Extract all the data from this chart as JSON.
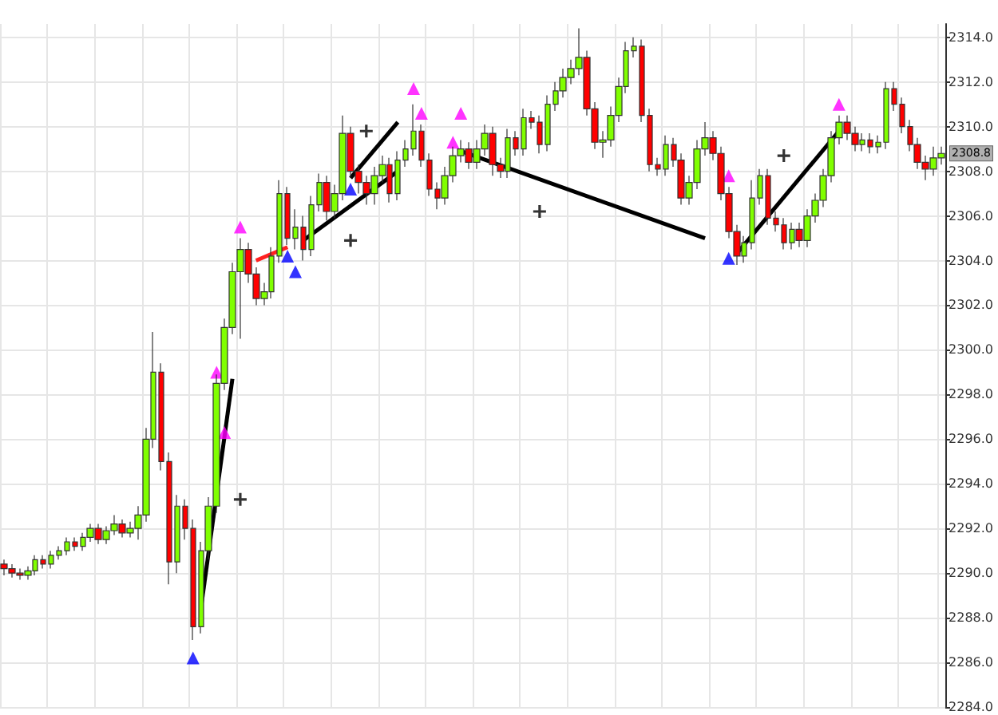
{
  "chart_data": {
    "type": "candlestick",
    "categories": [
      null,
      null,
      null,
      null,
      null,
      null,
      null,
      null,
      null,
      null,
      null,
      null,
      null,
      null,
      null,
      null,
      null,
      null,
      null,
      null,
      null,
      null,
      null,
      null,
      null,
      null,
      null,
      null,
      null,
      null,
      null,
      null,
      null,
      null,
      null,
      null,
      null,
      null,
      null,
      null,
      null,
      null,
      null,
      null,
      null,
      null,
      null,
      null,
      null,
      null,
      null,
      null,
      null,
      null,
      null,
      null,
      null,
      null,
      null,
      null,
      null,
      null,
      null,
      null,
      null,
      null,
      null,
      null,
      null,
      null,
      null,
      null,
      null,
      null,
      null,
      null,
      null,
      null,
      null,
      null,
      null,
      null,
      null,
      null,
      null,
      null,
      null,
      null,
      null,
      null,
      null,
      null,
      null,
      null,
      null,
      null,
      null,
      null,
      null,
      null,
      null,
      null,
      null,
      null,
      null,
      null,
      null,
      null,
      null,
      null,
      null,
      null,
      null,
      null,
      null,
      null,
      null,
      null,
      null,
      null
    ],
    "colors": [
      "#ff0000",
      "#ff0000",
      "#ff0000",
      "#80ff00",
      "#80ff00",
      "#ff0000",
      "#80ff00",
      "#80ff00",
      "#80ff00",
      "#ff0000",
      "#80ff00",
      "#80ff00",
      "#ff0000",
      "#80ff00",
      "#80ff00",
      "#ff0000",
      "#80ff00",
      "#80ff00",
      "#80ff00",
      "#80ff00",
      "#ff0000",
      "#ff0000",
      "#80ff00",
      "#ff0000",
      "#ff0000",
      "#80ff00",
      "#80ff00",
      "#80ff00",
      "#80ff00",
      "#80ff00",
      "#80ff00",
      "#ff0000",
      "#ff0000",
      "#80ff00",
      "#80ff00",
      "#80ff00",
      "#ff0000",
      "#80ff00",
      "#ff0000",
      "#80ff00",
      "#80ff00",
      "#ff0000",
      "#80ff00",
      "#80ff00",
      "#ff0000",
      "#ff0000",
      "#ff0000",
      "#80ff00",
      "#80ff00",
      "#ff0000",
      "#80ff00",
      "#80ff00",
      "#80ff00",
      "#ff0000",
      "#ff0000",
      "#ff0000",
      "#80ff00",
      "#80ff00",
      "#80ff00",
      "#ff0000",
      "#80ff00",
      "#80ff00",
      "#ff0000",
      "#ff0000",
      "#80ff00",
      "#ff0000",
      "#80ff00",
      "#ff0000",
      "#ff0000",
      "#80ff00",
      "#80ff00",
      "#80ff00",
      "#80ff00",
      "#80ff00",
      "#ff0000",
      "#ff0000",
      "#80ff00",
      "#80ff00",
      "#80ff00",
      "#80ff00",
      "#80ff00",
      "#ff0000",
      "#ff0000",
      "#ff0000",
      "#80ff00",
      "#ff0000",
      "#ff0000",
      "#80ff00",
      "#80ff00",
      "#80ff00",
      "#ff0000",
      "#ff0000",
      "#ff0000",
      "#ff0000",
      "#80ff00",
      "#80ff00",
      "#80ff00",
      "#ff0000",
      "#ff0000",
      "#ff0000",
      "#80ff00",
      "#ff0000",
      "#80ff00",
      "#80ff00",
      "#80ff00",
      "#80ff00",
      "#80ff00",
      "#ff0000",
      "#ff0000",
      "#80ff00",
      "#ff0000",
      "#80ff00",
      "#80ff00",
      "#ff0000",
      "#ff0000",
      "#ff0000",
      "#ff0000",
      "#ff0000",
      "#80ff00",
      "#80ff00"
    ],
    "ohlc": [
      [
        2290.4,
        2290.6,
        2289.9,
        2290.2
      ],
      [
        2290.2,
        2290.4,
        2289.8,
        2290.0
      ],
      [
        2290.0,
        2290.2,
        2289.7,
        2289.9
      ],
      [
        2289.9,
        2290.3,
        2289.7,
        2290.1
      ],
      [
        2290.1,
        2290.8,
        2289.9,
        2290.6
      ],
      [
        2290.6,
        2290.8,
        2290.2,
        2290.4
      ],
      [
        2290.4,
        2291.0,
        2290.2,
        2290.8
      ],
      [
        2290.8,
        2291.2,
        2290.6,
        2291.0
      ],
      [
        2291.0,
        2291.6,
        2290.8,
        2291.4
      ],
      [
        2291.4,
        2291.6,
        2291.0,
        2291.2
      ],
      [
        2291.2,
        2291.8,
        2291.0,
        2291.6
      ],
      [
        2291.6,
        2292.2,
        2291.4,
        2292.0
      ],
      [
        2292.0,
        2292.2,
        2291.3,
        2291.5
      ],
      [
        2291.5,
        2292.1,
        2291.3,
        2291.9
      ],
      [
        2291.9,
        2292.6,
        2291.7,
        2292.2
      ],
      [
        2292.2,
        2292.4,
        2291.6,
        2291.8
      ],
      [
        2291.8,
        2292.3,
        2291.6,
        2292.0
      ],
      [
        2292.0,
        2293.0,
        2291.5,
        2292.6
      ],
      [
        2292.6,
        2296.5,
        2292.3,
        2296.0
      ],
      [
        2296.0,
        2300.8,
        2295.6,
        2299.0
      ],
      [
        2299.0,
        2299.4,
        2294.6,
        2295.0
      ],
      [
        2295.0,
        2295.4,
        2289.5,
        2290.5
      ],
      [
        2290.5,
        2293.5,
        2290.0,
        2293.0
      ],
      [
        2293.0,
        2293.3,
        2291.5,
        2292.0
      ],
      [
        2292.0,
        2292.4,
        2287.0,
        2287.6
      ],
      [
        2287.6,
        2291.4,
        2287.3,
        2291.0
      ],
      [
        2291.0,
        2293.4,
        2290.6,
        2293.0
      ],
      [
        2293.0,
        2298.9,
        2292.7,
        2298.5
      ],
      [
        2298.5,
        2301.4,
        2298.2,
        2301.0
      ],
      [
        2301.0,
        2303.9,
        2300.7,
        2303.5
      ],
      [
        2303.5,
        2305.0,
        2300.5,
        2304.5
      ],
      [
        2304.5,
        2304.8,
        2303.0,
        2303.4
      ],
      [
        2303.4,
        2303.7,
        2302.0,
        2302.3
      ],
      [
        2302.3,
        2303.0,
        2302.0,
        2302.6
      ],
      [
        2302.6,
        2304.6,
        2302.3,
        2304.2
      ],
      [
        2304.2,
        2307.6,
        2303.9,
        2307.0
      ],
      [
        2307.0,
        2307.3,
        2304.7,
        2305.0
      ],
      [
        2305.0,
        2306.3,
        2304.5,
        2305.5
      ],
      [
        2305.5,
        2306.0,
        2304.0,
        2304.5
      ],
      [
        2304.5,
        2306.9,
        2304.2,
        2306.5
      ],
      [
        2306.5,
        2307.9,
        2306.2,
        2307.5
      ],
      [
        2307.5,
        2307.8,
        2305.8,
        2306.2
      ],
      [
        2306.2,
        2307.4,
        2305.9,
        2307.0
      ],
      [
        2307.0,
        2310.5,
        2306.7,
        2309.7
      ],
      [
        2309.7,
        2310.0,
        2307.7,
        2308.0
      ],
      [
        2308.0,
        2308.3,
        2307.0,
        2307.5
      ],
      [
        2307.5,
        2307.8,
        2306.5,
        2307.0
      ],
      [
        2307.0,
        2308.2,
        2306.5,
        2307.8
      ],
      [
        2307.8,
        2308.7,
        2307.5,
        2308.3
      ],
      [
        2308.3,
        2308.6,
        2306.6,
        2307.0
      ],
      [
        2307.0,
        2308.9,
        2306.7,
        2308.5
      ],
      [
        2308.5,
        2309.4,
        2308.2,
        2309.0
      ],
      [
        2309.0,
        2311.0,
        2308.7,
        2309.8
      ],
      [
        2309.8,
        2310.1,
        2308.2,
        2308.5
      ],
      [
        2308.5,
        2308.8,
        2306.9,
        2307.2
      ],
      [
        2307.2,
        2307.5,
        2306.3,
        2306.8
      ],
      [
        2306.8,
        2308.2,
        2306.5,
        2307.8
      ],
      [
        2307.8,
        2309.1,
        2307.5,
        2308.7
      ],
      [
        2308.7,
        2309.4,
        2308.4,
        2309.0
      ],
      [
        2309.0,
        2309.3,
        2308.1,
        2308.4
      ],
      [
        2308.4,
        2309.4,
        2308.1,
        2309.0
      ],
      [
        2309.0,
        2310.1,
        2308.7,
        2309.7
      ],
      [
        2309.7,
        2310.0,
        2307.8,
        2308.3
      ],
      [
        2308.3,
        2308.6,
        2307.7,
        2308.0
      ],
      [
        2308.0,
        2309.9,
        2307.7,
        2309.5
      ],
      [
        2309.5,
        2309.8,
        2308.7,
        2309.0
      ],
      [
        2309.0,
        2310.8,
        2308.7,
        2310.4
      ],
      [
        2310.4,
        2310.7,
        2309.9,
        2310.2
      ],
      [
        2310.2,
        2310.5,
        2308.8,
        2309.2
      ],
      [
        2309.2,
        2311.4,
        2308.9,
        2311.0
      ],
      [
        2311.0,
        2312.0,
        2310.7,
        2311.6
      ],
      [
        2311.6,
        2312.6,
        2311.3,
        2312.2
      ],
      [
        2312.2,
        2313.0,
        2311.9,
        2312.6
      ],
      [
        2312.6,
        2314.4,
        2312.3,
        2313.1
      ],
      [
        2313.1,
        2313.4,
        2310.5,
        2310.8
      ],
      [
        2310.8,
        2311.1,
        2309.0,
        2309.3
      ],
      [
        2309.3,
        2309.8,
        2308.6,
        2309.4
      ],
      [
        2309.4,
        2310.9,
        2309.1,
        2310.5
      ],
      [
        2310.5,
        2312.2,
        2310.2,
        2311.8
      ],
      [
        2311.8,
        2313.8,
        2311.5,
        2313.4
      ],
      [
        2313.4,
        2314.0,
        2313.1,
        2313.6
      ],
      [
        2313.6,
        2313.9,
        2310.2,
        2310.5
      ],
      [
        2310.5,
        2310.8,
        2308.0,
        2308.3
      ],
      [
        2308.3,
        2308.6,
        2307.8,
        2308.1
      ],
      [
        2308.1,
        2309.6,
        2307.8,
        2309.2
      ],
      [
        2309.2,
        2309.5,
        2308.2,
        2308.5
      ],
      [
        2308.5,
        2308.8,
        2306.5,
        2306.8
      ],
      [
        2306.8,
        2307.8,
        2306.5,
        2307.5
      ],
      [
        2307.5,
        2309.4,
        2307.2,
        2309.0
      ],
      [
        2309.0,
        2310.2,
        2308.7,
        2309.5
      ],
      [
        2309.5,
        2309.8,
        2308.5,
        2308.8
      ],
      [
        2308.8,
        2309.1,
        2306.7,
        2307.0
      ],
      [
        2307.0,
        2307.3,
        2305.0,
        2305.3
      ],
      [
        2305.3,
        2305.6,
        2303.8,
        2304.2
      ],
      [
        2304.2,
        2305.1,
        2303.9,
        2304.8
      ],
      [
        2304.8,
        2307.6,
        2304.5,
        2306.8
      ],
      [
        2306.8,
        2308.1,
        2306.5,
        2307.8
      ],
      [
        2307.8,
        2308.1,
        2305.6,
        2305.9
      ],
      [
        2305.9,
        2306.2,
        2305.3,
        2305.6
      ],
      [
        2305.6,
        2305.9,
        2304.5,
        2304.8
      ],
      [
        2304.8,
        2305.7,
        2304.5,
        2305.4
      ],
      [
        2305.4,
        2305.7,
        2304.6,
        2304.9
      ],
      [
        2304.9,
        2306.3,
        2304.6,
        2306.0
      ],
      [
        2306.0,
        2307.0,
        2305.7,
        2306.7
      ],
      [
        2306.7,
        2308.1,
        2306.4,
        2307.8
      ],
      [
        2307.8,
        2309.8,
        2307.5,
        2309.5
      ],
      [
        2309.5,
        2310.5,
        2309.2,
        2310.2
      ],
      [
        2310.2,
        2310.5,
        2309.4,
        2309.7
      ],
      [
        2309.7,
        2310.0,
        2308.9,
        2309.2
      ],
      [
        2309.2,
        2309.7,
        2308.9,
        2309.4
      ],
      [
        2309.4,
        2309.7,
        2308.8,
        2309.1
      ],
      [
        2309.1,
        2309.6,
        2308.8,
        2309.3
      ],
      [
        2309.3,
        2312.0,
        2309.0,
        2311.7
      ],
      [
        2311.7,
        2312.0,
        2310.7,
        2311.0
      ],
      [
        2311.0,
        2311.3,
        2309.7,
        2310.0
      ],
      [
        2310.0,
        2310.3,
        2308.9,
        2309.2
      ],
      [
        2309.2,
        2309.5,
        2308.1,
        2308.4
      ],
      [
        2308.4,
        2308.7,
        2307.6,
        2308.1
      ],
      [
        2308.1,
        2309.1,
        2307.8,
        2308.6
      ],
      [
        2308.6,
        2309.1,
        2308.3,
        2308.8
      ]
    ],
    "series": [
      {
        "type": "line",
        "color": "#000000",
        "values": [
          null,
          null,
          null,
          null,
          null,
          null,
          null,
          null,
          null,
          null,
          null,
          null,
          null,
          null,
          null,
          null,
          null,
          null,
          null,
          null,
          null,
          null,
          null,
          null,
          null,
          2288.4,
          null,
          null,
          null,
          2298.7,
          null,
          null,
          null,
          null,
          null,
          null,
          null,
          null,
          null,
          null,
          null,
          null,
          null,
          null,
          null,
          null,
          null,
          null,
          null,
          null,
          null,
          null,
          null,
          null,
          null,
          null,
          null,
          null,
          null,
          null,
          null,
          null,
          null,
          null,
          null,
          null,
          null,
          null,
          null,
          null,
          null,
          null,
          null,
          null,
          null,
          null,
          null,
          null,
          null,
          null,
          null,
          null,
          null,
          null,
          null,
          null,
          null,
          null,
          null,
          null,
          null,
          null,
          null,
          null,
          null,
          null,
          null,
          null,
          null,
          null,
          null,
          null,
          null,
          null,
          null,
          null,
          null,
          null,
          null,
          null,
          null,
          null,
          null,
          null,
          null,
          null,
          null,
          null,
          null,
          null
        ]
      },
      {
        "type": "line",
        "color": "#ff2020",
        "values": [
          null,
          null,
          null,
          null,
          null,
          null,
          null,
          null,
          null,
          null,
          null,
          null,
          null,
          null,
          null,
          null,
          null,
          null,
          null,
          null,
          null,
          null,
          null,
          null,
          null,
          null,
          null,
          null,
          null,
          null,
          null,
          null,
          2304.0,
          null,
          null,
          null,
          2304.6,
          null,
          null,
          null,
          null,
          null,
          null,
          null,
          null,
          null,
          null,
          null,
          null,
          null,
          null,
          null,
          null,
          null,
          null,
          null,
          null,
          null,
          null,
          null,
          null,
          null,
          null,
          null,
          null,
          null,
          null,
          null,
          null,
          null,
          null,
          null,
          null,
          null,
          null,
          null,
          null,
          null,
          null,
          null,
          null,
          null,
          null,
          null,
          null,
          null,
          null,
          null,
          null,
          null,
          null,
          null,
          null,
          null,
          null,
          null,
          null,
          null,
          null,
          null,
          null,
          null,
          null,
          null,
          null,
          null,
          null,
          null,
          null,
          null,
          null,
          null,
          null,
          null,
          null,
          null,
          null,
          null,
          null,
          null
        ]
      },
      {
        "type": "line",
        "color": "#000000",
        "values": [
          null,
          null,
          null,
          null,
          null,
          null,
          null,
          null,
          null,
          null,
          null,
          null,
          null,
          null,
          null,
          null,
          null,
          null,
          null,
          null,
          null,
          null,
          null,
          null,
          null,
          null,
          null,
          null,
          null,
          null,
          null,
          null,
          null,
          null,
          null,
          null,
          null,
          null,
          2304.9,
          null,
          null,
          null,
          null,
          null,
          null,
          null,
          null,
          null,
          null,
          null,
          2308.0,
          null,
          null,
          null,
          null,
          null,
          null,
          null,
          null,
          null,
          null,
          null,
          null,
          null,
          null,
          null,
          null,
          null,
          null,
          null,
          null,
          null,
          null,
          null,
          null,
          null,
          null,
          null,
          null,
          null,
          null,
          null,
          null,
          null,
          null,
          null,
          null,
          null,
          null,
          null,
          null,
          null,
          null,
          null,
          null,
          null,
          null,
          null,
          null,
          null,
          null,
          null,
          null,
          null,
          null,
          null,
          null,
          null,
          null,
          null,
          null,
          null,
          null,
          null,
          null,
          null,
          null,
          null,
          null,
          null
        ]
      },
      {
        "type": "line",
        "color": "#000000",
        "values": [
          null,
          null,
          null,
          null,
          null,
          null,
          null,
          null,
          null,
          null,
          null,
          null,
          null,
          null,
          null,
          null,
          null,
          null,
          null,
          null,
          null,
          null,
          null,
          null,
          null,
          null,
          null,
          null,
          null,
          null,
          null,
          null,
          null,
          null,
          null,
          null,
          null,
          null,
          null,
          null,
          null,
          null,
          null,
          null,
          2307.7,
          null,
          null,
          null,
          null,
          null,
          2310.2,
          null,
          null,
          null,
          null,
          null,
          null,
          null,
          null,
          null,
          null,
          null,
          null,
          null,
          null,
          null,
          null,
          null,
          null,
          null,
          null,
          null,
          null,
          null,
          null,
          null,
          null,
          null,
          null,
          null,
          null,
          null,
          null,
          null,
          null,
          null,
          null,
          null,
          null,
          null,
          null,
          null,
          null,
          null,
          null,
          null,
          null,
          null,
          null,
          null,
          null,
          null,
          null,
          null,
          null,
          null,
          null,
          null,
          null,
          null,
          null,
          null,
          null,
          null,
          null,
          null,
          null,
          null,
          null,
          null
        ]
      },
      {
        "type": "line",
        "color": "#000000",
        "values": [
          null,
          null,
          null,
          null,
          null,
          null,
          null,
          null,
          null,
          null,
          null,
          null,
          null,
          null,
          null,
          null,
          null,
          null,
          null,
          null,
          null,
          null,
          null,
          null,
          null,
          null,
          null,
          null,
          null,
          null,
          null,
          null,
          null,
          null,
          null,
          null,
          null,
          null,
          null,
          null,
          null,
          null,
          null,
          null,
          null,
          null,
          null,
          null,
          null,
          null,
          null,
          null,
          null,
          null,
          null,
          null,
          null,
          null,
          2308.9,
          null,
          null,
          null,
          null,
          null,
          null,
          null,
          null,
          null,
          null,
          null,
          null,
          null,
          null,
          null,
          null,
          null,
          null,
          null,
          null,
          null,
          null,
          null,
          null,
          null,
          null,
          null,
          null,
          null,
          null,
          2305.0,
          null,
          null,
          null,
          null,
          null,
          null,
          null,
          null,
          null,
          null,
          null,
          null,
          null,
          null,
          null,
          null,
          null,
          null,
          null,
          null,
          null,
          null,
          null,
          null,
          null,
          null,
          null,
          null,
          null,
          null
        ]
      },
      {
        "type": "line",
        "color": "#000000",
        "values": [
          null,
          null,
          null,
          null,
          null,
          null,
          null,
          null,
          null,
          null,
          null,
          null,
          null,
          null,
          null,
          null,
          null,
          null,
          null,
          null,
          null,
          null,
          null,
          null,
          null,
          null,
          null,
          null,
          null,
          null,
          null,
          null,
          null,
          null,
          null,
          null,
          null,
          null,
          null,
          null,
          null,
          null,
          null,
          null,
          null,
          null,
          null,
          null,
          null,
          null,
          null,
          null,
          null,
          null,
          null,
          null,
          null,
          null,
          null,
          null,
          null,
          null,
          null,
          null,
          null,
          null,
          null,
          null,
          null,
          null,
          null,
          null,
          null,
          null,
          null,
          null,
          null,
          null,
          null,
          null,
          null,
          null,
          null,
          null,
          null,
          null,
          null,
          null,
          null,
          null,
          null,
          null,
          null,
          2304.3,
          null,
          null,
          null,
          null,
          null,
          null,
          null,
          null,
          null,
          null,
          null,
          null,
          2309.8,
          null,
          null,
          null,
          null,
          null,
          null,
          null,
          null,
          null,
          null,
          null,
          null,
          null
        ]
      },
      {
        "type": "scatter",
        "marker": "cross",
        "color": "#000000",
        "values": [
          null,
          null,
          null,
          null,
          null,
          null,
          null,
          null,
          null,
          null,
          null,
          null,
          null,
          null,
          null,
          null,
          null,
          null,
          null,
          null,
          null,
          null,
          null,
          null,
          null,
          null,
          null,
          null,
          null,
          null,
          2293.3,
          null,
          null,
          null,
          null,
          null,
          null,
          null,
          null,
          null,
          null,
          null,
          null,
          null,
          2304.9,
          null,
          2309.8,
          null,
          null,
          null,
          null,
          null,
          null,
          null,
          null,
          null,
          null,
          null,
          null,
          null,
          null,
          null,
          null,
          null,
          null,
          null,
          null,
          null,
          2306.2,
          null,
          null,
          null,
          null,
          null,
          null,
          null,
          null,
          null,
          null,
          null,
          null,
          null,
          null,
          null,
          null,
          null,
          null,
          null,
          null,
          null,
          null,
          null,
          null,
          null,
          null,
          null,
          null,
          null,
          null,
          2308.7,
          null,
          null,
          null,
          null,
          null,
          null,
          null,
          null,
          null,
          null,
          null,
          null,
          null,
          null,
          null,
          null,
          null,
          null,
          null,
          null
        ]
      },
      {
        "type": "scatter",
        "marker": "triangle",
        "color": "#ff00ff",
        "values": [
          null,
          null,
          null,
          null,
          null,
          null,
          null,
          null,
          null,
          null,
          null,
          null,
          null,
          null,
          null,
          null,
          null,
          null,
          null,
          null,
          null,
          null,
          null,
          null,
          null,
          null,
          null,
          2299.0,
          2296.3,
          null,
          2305.5,
          null,
          null,
          null,
          null,
          null,
          null,
          null,
          null,
          null,
          null,
          null,
          null,
          null,
          null,
          null,
          null,
          null,
          null,
          null,
          null,
          null,
          2311.7,
          2310.6,
          null,
          null,
          null,
          2309.3,
          2310.6,
          null,
          null,
          null,
          null,
          null,
          null,
          null,
          null,
          null,
          null,
          null,
          null,
          null,
          null,
          null,
          null,
          null,
          null,
          null,
          null,
          null,
          null,
          null,
          null,
          null,
          null,
          null,
          null,
          null,
          null,
          null,
          null,
          null,
          2307.8,
          null,
          null,
          null,
          null,
          null,
          null,
          null,
          null,
          null,
          null,
          null,
          null,
          null,
          2311.0,
          null,
          null,
          null,
          null,
          null,
          null,
          null,
          null,
          null,
          null,
          null,
          null,
          null
        ]
      },
      {
        "type": "scatter",
        "marker": "triangle",
        "color": "#0000ff",
        "values": [
          null,
          null,
          null,
          null,
          null,
          null,
          null,
          null,
          null,
          null,
          null,
          null,
          null,
          null,
          null,
          null,
          null,
          null,
          null,
          null,
          null,
          null,
          null,
          null,
          2286.2,
          null,
          null,
          null,
          null,
          null,
          null,
          null,
          null,
          null,
          null,
          null,
          2304.2,
          2303.5,
          null,
          null,
          null,
          null,
          null,
          null,
          2307.2,
          null,
          null,
          null,
          null,
          null,
          null,
          null,
          null,
          null,
          null,
          null,
          null,
          null,
          null,
          null,
          null,
          null,
          null,
          null,
          null,
          null,
          null,
          null,
          null,
          null,
          null,
          null,
          null,
          null,
          null,
          null,
          null,
          null,
          null,
          null,
          null,
          null,
          null,
          null,
          null,
          null,
          null,
          null,
          null,
          null,
          null,
          null,
          2304.1,
          null,
          null,
          null,
          null,
          null,
          null,
          null,
          null,
          null,
          null,
          null,
          null,
          null,
          null,
          null,
          null,
          null,
          null,
          null,
          null,
          null,
          null,
          null,
          null,
          null,
          null,
          null
        ]
      }
    ],
    "annotations": [
      "2308.8"
    ],
    "ylim": [
      2284,
      2314.6
    ],
    "yticks": [
      {
        "value": 2284,
        "label": "2284.0"
      },
      {
        "value": 2286,
        "label": "2286.0"
      },
      {
        "value": 2288,
        "label": "2288.0"
      },
      {
        "value": 2290,
        "label": "2290.0"
      },
      {
        "value": 2292,
        "label": "2292.0"
      },
      {
        "value": 2294,
        "label": "2294.0"
      },
      {
        "value": 2296,
        "label": "2296.0"
      },
      {
        "value": 2298,
        "label": "2298.0"
      },
      {
        "value": 2300,
        "label": "2300.0"
      },
      {
        "value": 2302,
        "label": "2302.0"
      },
      {
        "value": 2304,
        "label": "2304.0"
      },
      {
        "value": 2306,
        "label": "2306.0"
      },
      {
        "value": 2308,
        "label": "2308.0"
      },
      {
        "value": 2310,
        "label": "2310.0"
      },
      {
        "value": 2312,
        "label": "2312.0"
      },
      {
        "value": 2314,
        "label": "2314.0"
      }
    ],
    "tick_labels": "y",
    "grid": true
  }
}
